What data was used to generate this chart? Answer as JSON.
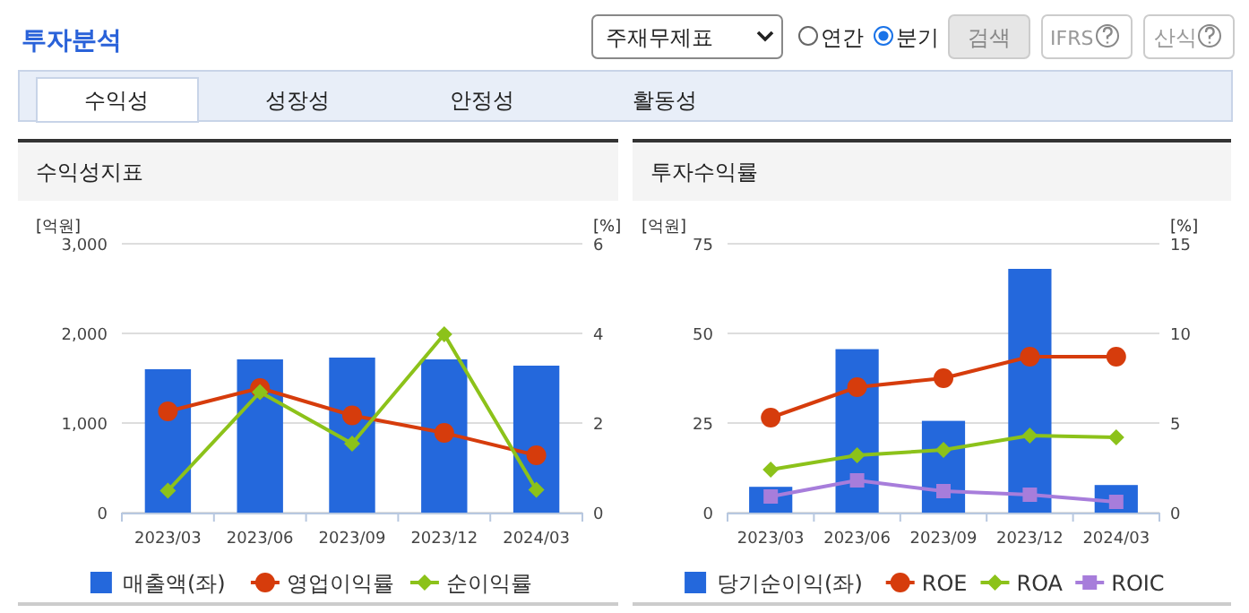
{
  "chart_data": [
    {
      "type": "other",
      "title": "투자분석",
      "annotations": [
        "주재무제표",
        "연간",
        "분기",
        "검색",
        "IFRS",
        "산식",
        "수익성",
        "성장성",
        "안정성",
        "활동성"
      ]
    },
    {
      "type": "bar",
      "title": "수익성지표",
      "ylabel": "[억원]",
      "y2label": "[%]",
      "categories": [
        "2023/03",
        "2023/06",
        "2023/09",
        "2023/12",
        "2024/03"
      ],
      "series": [
        {
          "name": "매출액(좌)",
          "type": "bar",
          "color": "#2468dc",
          "values": [
            1600,
            1710,
            1730,
            1710,
            1640
          ]
        },
        {
          "name": "영업이익률",
          "type": "line",
          "axis": "y2",
          "color": "#d63c0c",
          "marker": "circle",
          "values": [
            2.26,
            2.78,
            2.17,
            1.78,
            1.28
          ]
        },
        {
          "name": "순이익률",
          "type": "line",
          "axis": "y2",
          "color": "#8cc21a",
          "marker": "diamond",
          "values": [
            0.49,
            2.69,
            1.54,
            3.98,
            0.51
          ]
        }
      ],
      "ylim": [
        0,
        3000
      ],
      "yticks": [
        0,
        {
          "value": 1000,
          "label": "1,000"
        },
        {
          "value": 2000,
          "label": "2,000"
        },
        {
          "value": 3000,
          "label": "3,000"
        }
      ],
      "y2lim": [
        0,
        6
      ],
      "y2ticks": [
        0,
        2,
        4,
        6
      ],
      "grid": "y",
      "legend": "bottom"
    },
    {
      "type": "bar",
      "title": "투자수익률",
      "ylabel": "[억원]",
      "y2label": "[%]",
      "categories": [
        "2023/03",
        "2023/06",
        "2023/09",
        "2023/12",
        "2024/03"
      ],
      "series": [
        {
          "name": "당기순이익(좌)",
          "type": "bar",
          "color": "#2468dc",
          "values": [
            7.2,
            45.6,
            25.6,
            68.0,
            7.7
          ]
        },
        {
          "name": "ROE",
          "type": "line",
          "axis": "y2",
          "color": "#d63c0c",
          "marker": "circle",
          "values": [
            5.3,
            7.0,
            7.5,
            8.7,
            8.7
          ]
        },
        {
          "name": "ROA",
          "type": "line",
          "axis": "y2",
          "color": "#8cc21a",
          "marker": "diamond",
          "values": [
            2.4,
            3.2,
            3.5,
            4.3,
            4.2
          ]
        },
        {
          "name": "ROIC",
          "type": "line",
          "axis": "y2",
          "color": "#a77ddb",
          "marker": "square",
          "values": [
            0.9,
            1.8,
            1.2,
            1.0,
            0.6
          ]
        }
      ],
      "ylim": [
        0,
        75
      ],
      "yticks": [
        0,
        25,
        50,
        75
      ],
      "y2lim": [
        0,
        15
      ],
      "y2ticks": [
        0,
        5,
        10,
        15
      ],
      "grid": "y",
      "legend": "bottom"
    }
  ]
}
